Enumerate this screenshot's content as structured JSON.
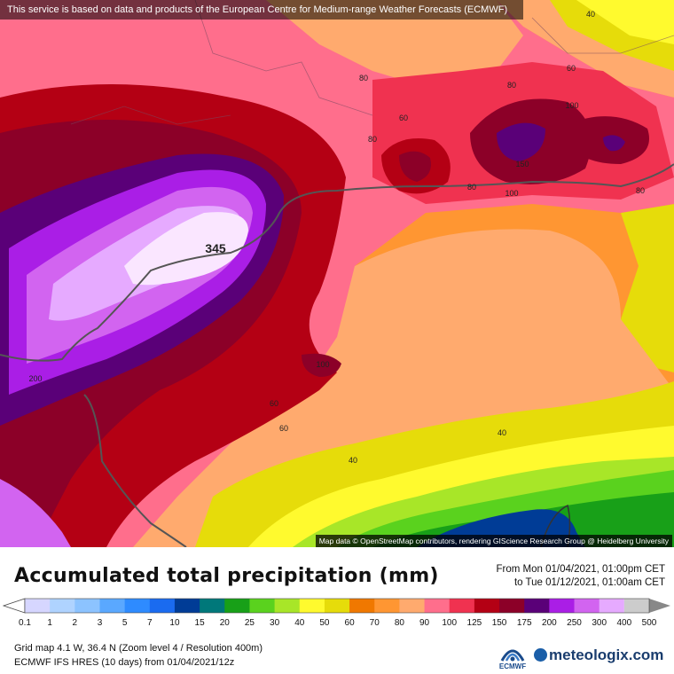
{
  "banner": "This service is based on data and products of the European Centre for Medium-range Weather Forecasts (ECMWF)",
  "attribution": "Map data © OpenStreetMap contributors, rendering GIScience Research Group @ Heidelberg University",
  "contour_labels": [
    "40",
    "60",
    "80",
    "80",
    "80",
    "60",
    "100",
    "150",
    "100",
    "80",
    "80",
    "345",
    "200",
    "100",
    "60",
    "60",
    "40",
    "40"
  ],
  "title": "Accumulated total precipitation (mm)",
  "period": {
    "from": "From Mon 01/04/2021, 01:00pm CET",
    "to": "to Tue 01/12/2021, 01:00am CET"
  },
  "legend": {
    "ticks": [
      "0.1",
      "1",
      "2",
      "3",
      "5",
      "7",
      "10",
      "15",
      "20",
      "25",
      "30",
      "40",
      "50",
      "60",
      "70",
      "80",
      "90",
      "100",
      "125",
      "150",
      "175",
      "200",
      "250",
      "300",
      "400",
      "500"
    ],
    "colors": [
      "#d6d6ff",
      "#afd3ff",
      "#8cc3ff",
      "#5aa8ff",
      "#2e8bff",
      "#1a6bf0",
      "#003c96",
      "#00787a",
      "#18a018",
      "#5ad21e",
      "#a8e628",
      "#fffa2e",
      "#e6dc0a",
      "#f07800",
      "#ff9632",
      "#ffaa6e",
      "#ff6e8c",
      "#f03250",
      "#b40014",
      "#8c0028",
      "#5a0078",
      "#aa1ee6",
      "#d264f0",
      "#e6aaff",
      "#fae6ff",
      "#cccccc",
      "#888888"
    ]
  },
  "grid_info": "Grid map 4.1 W, 36.4 N (Zoom level 4 / Resolution 400m)",
  "model_info": "ECMWF IFS HRES (10 days) from 01/04/2021/12z",
  "logos": {
    "ecmwf": "ECMWF",
    "meteologix": "meteologix.com"
  }
}
